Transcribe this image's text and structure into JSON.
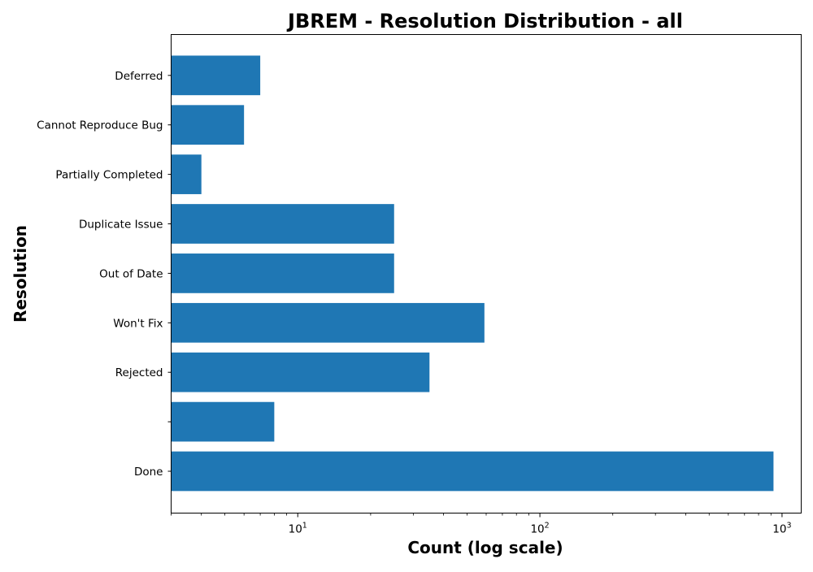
{
  "chart_data": {
    "type": "bar",
    "orientation": "horizontal",
    "title": "JBREM - Resolution Distribution - all",
    "xlabel": "Count (log scale)",
    "ylabel": "Resolution",
    "xscale": "log",
    "xlim": [
      3,
      1200
    ],
    "xticks": [
      {
        "value": 10,
        "base": "10",
        "exp": "1"
      },
      {
        "value": 100,
        "base": "10",
        "exp": "2"
      },
      {
        "value": 1000,
        "base": "10",
        "exp": "3"
      }
    ],
    "categories": [
      "Done",
      "",
      "Rejected",
      "Won't Fix",
      "Out of Date",
      "Duplicate Issue",
      "Partially Completed",
      "Cannot Reproduce Bug",
      "Deferred"
    ],
    "values": [
      922,
      8,
      35,
      59,
      25,
      25,
      4,
      6,
      7
    ],
    "bar_color": "#1f77b4",
    "grid": false,
    "legend": "none"
  }
}
